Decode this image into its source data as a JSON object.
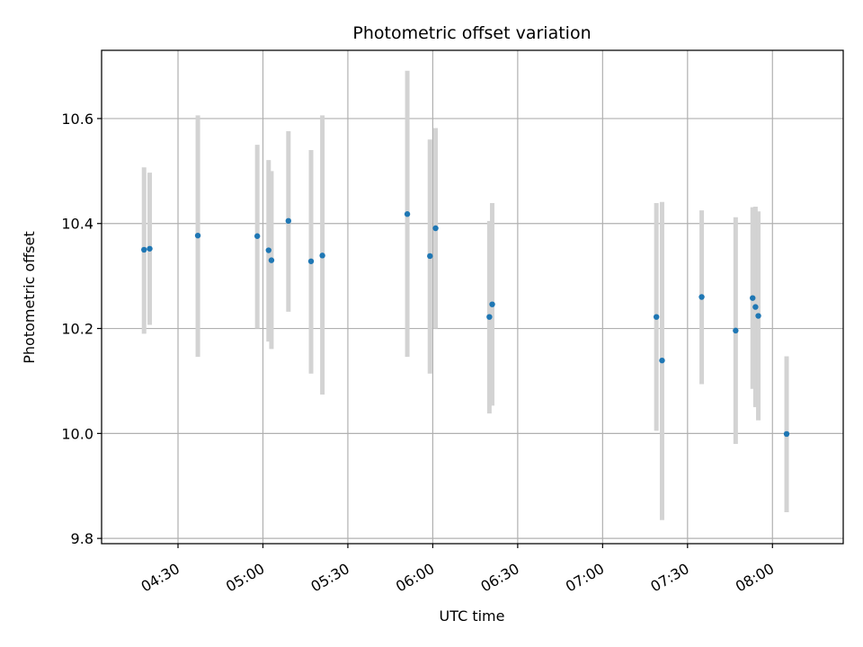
{
  "chart_data": {
    "type": "scatter",
    "title": "Photometric offset variation",
    "xlabel": "UTC time",
    "ylabel": "Photometric offset",
    "x_ticks": [
      "04:30",
      "05:00",
      "05:30",
      "06:00",
      "06:30",
      "07:00",
      "07:30",
      "08:00"
    ],
    "y_ticks": [
      "9.8",
      "10.0",
      "10.2",
      "10.4",
      "10.6"
    ],
    "xlim": [
      "04:03",
      "08:25"
    ],
    "ylim": [
      9.79,
      10.73
    ],
    "grid": true,
    "marker_color": "#1f77b4",
    "errorbar_color": "#d3d3d3",
    "points": [
      {
        "time": "04:18",
        "y": 10.35,
        "lo": 10.19,
        "hi": 10.507
      },
      {
        "time": "04:20",
        "y": 10.352,
        "lo": 10.207,
        "hi": 10.497
      },
      {
        "time": "04:37",
        "y": 10.377,
        "lo": 10.146,
        "hi": 10.606
      },
      {
        "time": "04:58",
        "y": 10.376,
        "lo": 10.2,
        "hi": 10.55
      },
      {
        "time": "05:02",
        "y": 10.349,
        "lo": 10.175,
        "hi": 10.521
      },
      {
        "time": "05:03",
        "y": 10.33,
        "lo": 10.161,
        "hi": 10.5
      },
      {
        "time": "05:09",
        "y": 10.405,
        "lo": 10.232,
        "hi": 10.576
      },
      {
        "time": "05:17",
        "y": 10.328,
        "lo": 10.114,
        "hi": 10.54
      },
      {
        "time": "05:21",
        "y": 10.339,
        "lo": 10.074,
        "hi": 10.606
      },
      {
        "time": "05:51",
        "y": 10.418,
        "lo": 10.146,
        "hi": 10.691
      },
      {
        "time": "05:59",
        "y": 10.338,
        "lo": 10.114,
        "hi": 10.56
      },
      {
        "time": "06:01",
        "y": 10.391,
        "lo": 10.2,
        "hi": 10.582
      },
      {
        "time": "06:20",
        "y": 10.222,
        "lo": 10.038,
        "hi": 10.405
      },
      {
        "time": "06:21",
        "y": 10.246,
        "lo": 10.053,
        "hi": 10.439
      },
      {
        "time": "07:19",
        "y": 10.222,
        "lo": 10.005,
        "hi": 10.439
      },
      {
        "time": "07:21",
        "y": 10.139,
        "lo": 9.835,
        "hi": 10.441
      },
      {
        "time": "07:35",
        "y": 10.26,
        "lo": 10.094,
        "hi": 10.425
      },
      {
        "time": "07:47",
        "y": 10.196,
        "lo": 9.98,
        "hi": 10.412
      },
      {
        "time": "07:53",
        "y": 10.258,
        "lo": 10.085,
        "hi": 10.431
      },
      {
        "time": "07:54",
        "y": 10.241,
        "lo": 10.05,
        "hi": 10.432
      },
      {
        "time": "07:55",
        "y": 10.224,
        "lo": 10.025,
        "hi": 10.423
      },
      {
        "time": "08:05",
        "y": 9.999,
        "lo": 9.85,
        "hi": 10.147
      }
    ]
  }
}
